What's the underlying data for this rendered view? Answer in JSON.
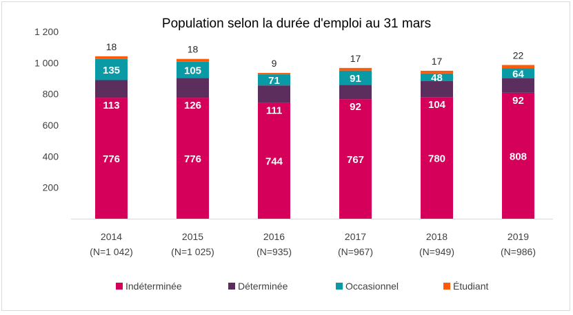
{
  "chart_data": {
    "type": "bar",
    "stacked": true,
    "title": "Population selon la durée d'emploi au 31 mars",
    "xlabel": "",
    "ylabel": "",
    "ylim": [
      0,
      1200
    ],
    "yticks": [
      200,
      400,
      600,
      800,
      1000,
      1200
    ],
    "ytick_labels": [
      "200",
      "400",
      "600",
      "800",
      "1 000",
      "1 200"
    ],
    "grid": false,
    "legend_position": "bottom",
    "categories": [
      "2014",
      "2015",
      "2016",
      "2017",
      "2018",
      "2019"
    ],
    "category_sublabels": [
      "(N=1 042)",
      "(N=1 025)",
      "(N=935)",
      "(N=967)",
      "(N=949)",
      "(N=986)"
    ],
    "totals": [
      1042,
      1025,
      935,
      967,
      949,
      986
    ],
    "series": [
      {
        "name": "Indéterminée",
        "color": "#D4005A",
        "values": [
          776,
          776,
          744,
          767,
          780,
          808
        ],
        "label_position": "inside"
      },
      {
        "name": "Déterminée",
        "color": "#5C2E5E",
        "values": [
          113,
          126,
          111,
          92,
          104,
          92
        ],
        "label_position": "inside-bottom"
      },
      {
        "name": "Occasionnel",
        "color": "#0A9AA6",
        "values": [
          135,
          105,
          71,
          91,
          48,
          64
        ],
        "label_position": "inside"
      },
      {
        "name": "Étudiant",
        "color": "#FF5A0A",
        "values": [
          18,
          18,
          9,
          17,
          17,
          22
        ],
        "label_position": "above"
      }
    ]
  }
}
